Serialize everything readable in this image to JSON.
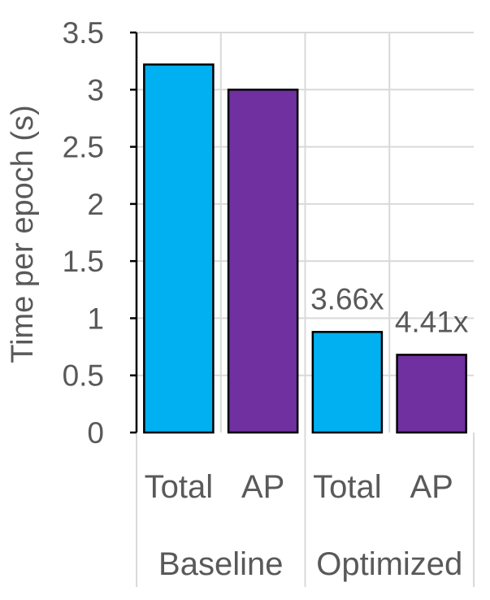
{
  "chart_data": {
    "type": "bar",
    "ylabel": "Time per epoch (s)",
    "ylim": [
      0,
      3.5
    ],
    "ytick_step": 0.5,
    "yticks": [
      "0",
      "0.5",
      "1",
      "1.5",
      "2",
      "2.5",
      "3",
      "3.5"
    ],
    "grid": true,
    "groups": [
      {
        "name": "Baseline",
        "bars": [
          {
            "category": "Total",
            "value": 3.22,
            "color": "#00B0F0",
            "label": ""
          },
          {
            "category": "AP",
            "value": 3.0,
            "color": "#7030A0",
            "label": ""
          }
        ]
      },
      {
        "name": "Optimized",
        "bars": [
          {
            "category": "Total",
            "value": 0.88,
            "color": "#00B0F0",
            "label": "3.66x"
          },
          {
            "category": "AP",
            "value": 0.68,
            "color": "#7030A0",
            "label": "4.41x"
          }
        ]
      }
    ]
  }
}
